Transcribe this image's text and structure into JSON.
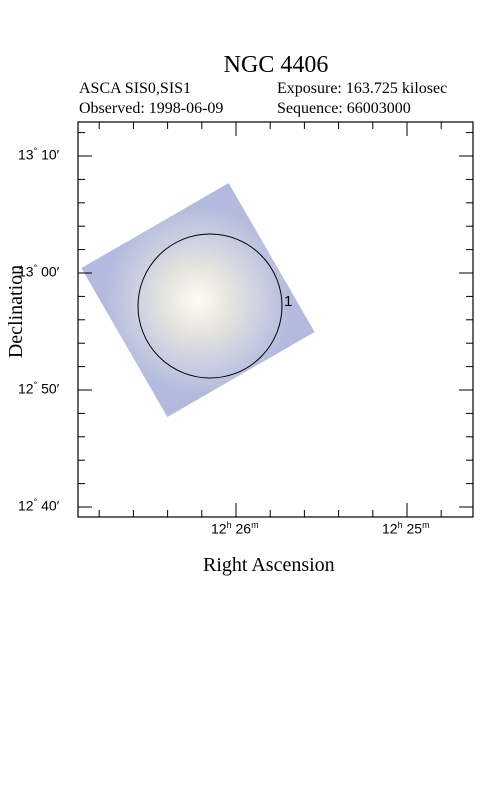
{
  "header": {
    "title": "NGC 4406",
    "instrument": "ASCA SIS0,SIS1",
    "exposure": "Exposure: 163.725 kilosec",
    "observed": "Observed: 1998-06-09",
    "sequence": "Sequence: 66003000"
  },
  "axes": {
    "xlabel": "Right Ascension",
    "ylabel": "Declination",
    "dec_ticks": [
      {
        "deg": "13",
        "min": "10"
      },
      {
        "deg": "13",
        "min": "00"
      },
      {
        "deg": "12",
        "min": "50"
      },
      {
        "deg": "12",
        "min": "40"
      }
    ],
    "ra_ticks": [
      {
        "h": "12",
        "m": "26"
      },
      {
        "h": "12",
        "m": "25"
      }
    ]
  },
  "region": {
    "label": "1"
  },
  "colors": {
    "image": "#a8b2d8",
    "center": "#fdfbf0"
  }
}
